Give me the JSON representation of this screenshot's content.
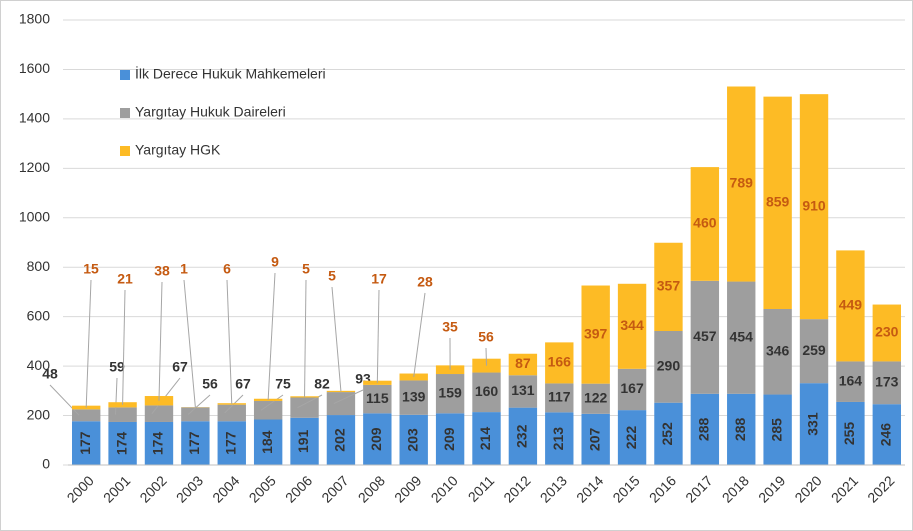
{
  "chart_data": {
    "type": "stacked_bar",
    "categories": [
      "2000",
      "2001",
      "2002",
      "2003",
      "2004",
      "2005",
      "2006",
      "2007",
      "2008",
      "2009",
      "2010",
      "2011",
      "2012",
      "2013",
      "2014",
      "2015",
      "2016",
      "2017",
      "2018",
      "2019",
      "2020",
      "2021",
      "2022"
    ],
    "series": [
      {
        "name": "İlk Derece Hukuk Mahkemeleri",
        "color": "#4a90d9",
        "values": [
          177,
          174,
          174,
          177,
          177,
          184,
          191,
          202,
          209,
          203,
          209,
          214,
          232,
          213,
          207,
          222,
          252,
          288,
          288,
          285,
          331,
          255,
          246
        ]
      },
      {
        "name": "Yargıtay Hukuk Daireleri",
        "color": "#9e9e9e",
        "values": [
          48,
          59,
          67,
          56,
          67,
          75,
          82,
          93,
          115,
          139,
          159,
          160,
          131,
          117,
          122,
          167,
          290,
          457,
          454,
          346,
          259,
          164,
          173
        ]
      },
      {
        "name": "Yargıtay HGK",
        "color": "#fdbb25",
        "values": [
          15,
          21,
          38,
          1,
          6,
          9,
          5,
          5,
          17,
          28,
          35,
          56,
          87,
          166,
          397,
          344,
          357,
          460,
          789,
          859,
          910,
          449,
          230
        ]
      }
    ],
    "ylim": [
      0,
      1800
    ],
    "yticks": [
      0,
      200,
      400,
      600,
      800,
      1000,
      1200,
      1400,
      1600,
      1800
    ],
    "grid": true,
    "legend": "upper left"
  }
}
